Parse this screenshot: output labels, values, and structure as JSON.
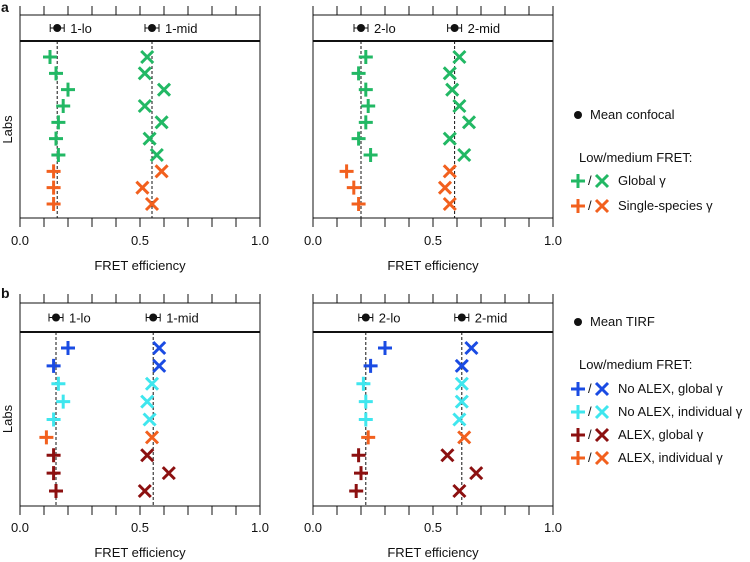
{
  "panel_labels": [
    "a",
    "b"
  ],
  "colors": {
    "green": "#22b864",
    "orange": "#f2601e",
    "blue": "#1a4be3",
    "cyan": "#3fe6ee",
    "darkred": "#8c1010",
    "black": "#111111"
  },
  "legend_a": {
    "mean_label": "Mean confocal",
    "heading": "Low/medium FRET:",
    "items": [
      {
        "color": "green",
        "label": "Global γ"
      },
      {
        "color": "orange",
        "label": "Single-species γ"
      }
    ]
  },
  "legend_b": {
    "mean_label": "Mean TIRF",
    "heading": "Low/medium FRET:",
    "items": [
      {
        "color": "blue",
        "label": "No ALEX, global γ"
      },
      {
        "color": "cyan",
        "label": "No ALEX, individual γ"
      },
      {
        "color": "darkred",
        "label": "ALEX, global γ"
      },
      {
        "color": "orange",
        "label": "ALEX, individual γ"
      }
    ]
  },
  "chart_data": [
    {
      "type": "scatter",
      "panel": "a",
      "xlabel": "FRET efficiency",
      "ylabel": "Labs",
      "xlim": [
        0,
        1
      ],
      "xticks": [
        "0.0",
        "0.5",
        "1.0"
      ],
      "means": [
        {
          "label": "1-lo",
          "value": 0.155
        },
        {
          "label": "1-mid",
          "value": 0.55
        }
      ],
      "plus": {
        "values": [
          0.125,
          0.15,
          0.2,
          0.18,
          0.16,
          0.15,
          0.16,
          0.14,
          0.14,
          0.14
        ],
        "colors": [
          "green",
          "green",
          "green",
          "green",
          "green",
          "green",
          "green",
          "orange",
          "orange",
          "orange"
        ]
      },
      "cross": {
        "values": [
          0.53,
          0.52,
          0.6,
          0.52,
          0.59,
          0.54,
          0.57,
          0.59,
          0.51,
          0.55
        ],
        "colors": [
          "green",
          "green",
          "green",
          "green",
          "green",
          "green",
          "green",
          "orange",
          "orange",
          "orange"
        ]
      }
    },
    {
      "type": "scatter",
      "panel": "a",
      "xlabel": "FRET efficiency",
      "ylabel": "",
      "xlim": [
        0,
        1
      ],
      "xticks": [
        "0.0",
        "0.5",
        "1.0"
      ],
      "means": [
        {
          "label": "2-lo",
          "value": 0.2
        },
        {
          "label": "2-mid",
          "value": 0.59
        }
      ],
      "plus": {
        "values": [
          0.22,
          0.19,
          0.22,
          0.23,
          0.22,
          0.19,
          0.24,
          0.14,
          0.17,
          0.19
        ],
        "colors": [
          "green",
          "green",
          "green",
          "green",
          "green",
          "green",
          "green",
          "orange",
          "orange",
          "orange"
        ]
      },
      "cross": {
        "values": [
          0.61,
          0.57,
          0.58,
          0.61,
          0.65,
          0.57,
          0.63,
          0.57,
          0.55,
          0.57
        ],
        "colors": [
          "green",
          "green",
          "green",
          "green",
          "green",
          "green",
          "green",
          "orange",
          "orange",
          "orange"
        ]
      }
    },
    {
      "type": "scatter",
      "panel": "b",
      "xlabel": "FRET efficiency",
      "ylabel": "Labs",
      "xlim": [
        0,
        1
      ],
      "xticks": [
        "0.0",
        "0.5",
        "1.0"
      ],
      "means": [
        {
          "label": "1-lo",
          "value": 0.15
        },
        {
          "label": "1-mid",
          "value": 0.555
        }
      ],
      "plus": {
        "values": [
          0.2,
          0.14,
          0.16,
          0.18,
          0.14,
          0.11,
          0.14,
          0.14,
          0.15
        ],
        "colors": [
          "blue",
          "blue",
          "cyan",
          "cyan",
          "cyan",
          "orange",
          "darkred",
          "darkred",
          "darkred"
        ]
      },
      "cross": {
        "values": [
          0.58,
          0.58,
          0.55,
          0.53,
          0.54,
          0.55,
          0.53,
          0.62,
          0.52
        ],
        "colors": [
          "blue",
          "blue",
          "cyan",
          "cyan",
          "cyan",
          "orange",
          "darkred",
          "darkred",
          "darkred"
        ]
      }
    },
    {
      "type": "scatter",
      "panel": "b",
      "xlabel": "FRET efficiency",
      "ylabel": "",
      "xlim": [
        0,
        1
      ],
      "xticks": [
        "0.0",
        "0.5",
        "1.0"
      ],
      "means": [
        {
          "label": "2-lo",
          "value": 0.22
        },
        {
          "label": "2-mid",
          "value": 0.62
        }
      ],
      "plus": {
        "values": [
          0.3,
          0.24,
          0.21,
          0.22,
          0.22,
          0.23,
          0.19,
          0.2,
          0.18
        ],
        "colors": [
          "blue",
          "blue",
          "cyan",
          "cyan",
          "cyan",
          "orange",
          "darkred",
          "darkred",
          "darkred"
        ]
      },
      "cross": {
        "values": [
          0.66,
          0.62,
          0.62,
          0.62,
          0.61,
          0.63,
          0.56,
          0.68,
          0.61
        ],
        "colors": [
          "blue",
          "blue",
          "cyan",
          "cyan",
          "cyan",
          "orange",
          "darkred",
          "darkred",
          "darkred"
        ]
      }
    }
  ]
}
